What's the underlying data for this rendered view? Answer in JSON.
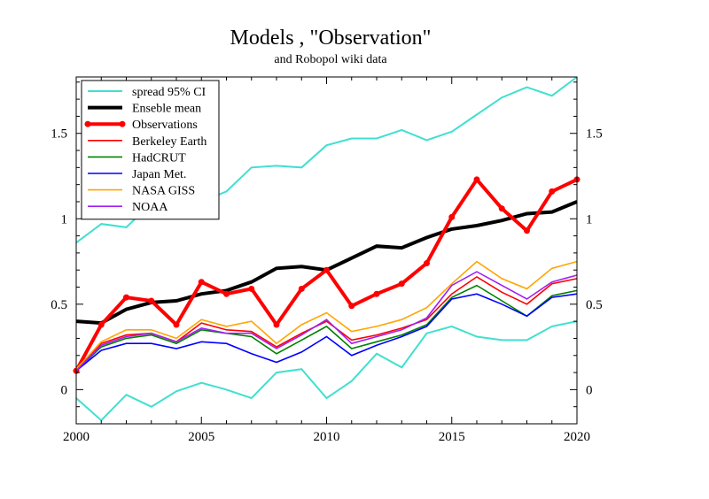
{
  "chart_data": {
    "type": "line",
    "title": "Models , \"Observation\"",
    "subtitle": "and Robopol wiki data",
    "xlabel": "",
    "ylabel": "",
    "xlim": [
      2000,
      2020
    ],
    "ylim": [
      -0.2,
      1.83
    ],
    "xticks": [
      2000,
      2005,
      2010,
      2015,
      2020
    ],
    "yticks": [
      0,
      0.5,
      1,
      1.5
    ],
    "xtick_labels": [
      "2000",
      "2005",
      "2010",
      "2015",
      "2020"
    ],
    "ytick_labels": [
      "0",
      "0.5",
      "1",
      "1.5"
    ],
    "grid": false,
    "legend_position": "top-left",
    "x": [
      2000,
      2001,
      2002,
      2003,
      2004,
      2005,
      2006,
      2007,
      2008,
      2009,
      2010,
      2011,
      2012,
      2013,
      2014,
      2015,
      2016,
      2017,
      2018,
      2019,
      2020
    ],
    "series": [
      {
        "name": "spread 95% CI",
        "color": "#40e0d0",
        "width": 2,
        "markers": false,
        "values": [
          0.86,
          0.97,
          0.95,
          1.09,
          1.06,
          1.1,
          1.16,
          1.3,
          1.31,
          1.3,
          1.43,
          1.47,
          1.47,
          1.52,
          1.46,
          1.51,
          1.61,
          1.71,
          1.77,
          1.72,
          1.83
        ]
      },
      {
        "name": "",
        "color": "#40e0d0",
        "width": 2,
        "markers": false,
        "values": [
          -0.05,
          -0.18,
          -0.03,
          -0.1,
          -0.01,
          0.04,
          0.0,
          -0.05,
          0.1,
          0.12,
          -0.05,
          0.05,
          0.21,
          0.13,
          0.33,
          0.37,
          0.31,
          0.29,
          0.29,
          0.37,
          0.4
        ]
      },
      {
        "name": "Ensemble mean",
        "label": "Enseble mean",
        "color": "#000000",
        "width": 4,
        "markers": false,
        "values": [
          0.4,
          0.39,
          0.47,
          0.51,
          0.52,
          0.56,
          0.58,
          0.63,
          0.71,
          0.72,
          0.7,
          0.77,
          0.84,
          0.83,
          0.89,
          0.94,
          0.96,
          0.99,
          1.03,
          1.04,
          1.1
        ]
      },
      {
        "name": "Observations",
        "color": "#ff0000",
        "width": 4,
        "markers": true,
        "values": [
          0.11,
          0.38,
          0.54,
          0.52,
          0.38,
          0.63,
          0.56,
          0.59,
          0.38,
          0.59,
          0.7,
          0.49,
          0.56,
          0.62,
          0.74,
          1.01,
          1.23,
          1.06,
          0.93,
          1.16,
          1.23
        ]
      },
      {
        "name": "Berkeley Earth",
        "color": "#ff0000",
        "width": 1.6,
        "markers": false,
        "values": [
          0.11,
          0.27,
          0.32,
          0.33,
          0.28,
          0.39,
          0.35,
          0.34,
          0.25,
          0.33,
          0.4,
          0.29,
          0.32,
          0.36,
          0.41,
          0.56,
          0.66,
          0.57,
          0.5,
          0.62,
          0.65
        ]
      },
      {
        "name": "HadCRUT",
        "color": "#008000",
        "width": 1.6,
        "markers": false,
        "values": [
          0.11,
          0.25,
          0.3,
          0.32,
          0.27,
          0.35,
          0.33,
          0.31,
          0.21,
          0.29,
          0.37,
          0.24,
          0.28,
          0.32,
          0.38,
          0.54,
          0.61,
          0.52,
          0.43,
          0.55,
          0.58
        ]
      },
      {
        "name": "Japan Met.",
        "color": "#0000ff",
        "width": 1.6,
        "markers": false,
        "values": [
          0.11,
          0.23,
          0.27,
          0.27,
          0.24,
          0.28,
          0.27,
          0.21,
          0.16,
          0.22,
          0.31,
          0.2,
          0.26,
          0.31,
          0.37,
          0.53,
          0.56,
          0.5,
          0.43,
          0.54,
          0.56
        ]
      },
      {
        "name": "NASA GISS",
        "color": "#ffa500",
        "width": 1.6,
        "markers": false,
        "values": [
          0.12,
          0.28,
          0.35,
          0.35,
          0.3,
          0.41,
          0.37,
          0.4,
          0.27,
          0.38,
          0.45,
          0.34,
          0.37,
          0.41,
          0.48,
          0.62,
          0.75,
          0.65,
          0.59,
          0.71,
          0.75
        ]
      },
      {
        "name": "NOAA",
        "color": "#a020f0",
        "width": 1.6,
        "markers": false,
        "values": [
          0.11,
          0.26,
          0.31,
          0.33,
          0.28,
          0.36,
          0.33,
          0.33,
          0.24,
          0.32,
          0.41,
          0.27,
          0.31,
          0.35,
          0.42,
          0.61,
          0.69,
          0.61,
          0.53,
          0.63,
          0.67
        ]
      }
    ]
  }
}
